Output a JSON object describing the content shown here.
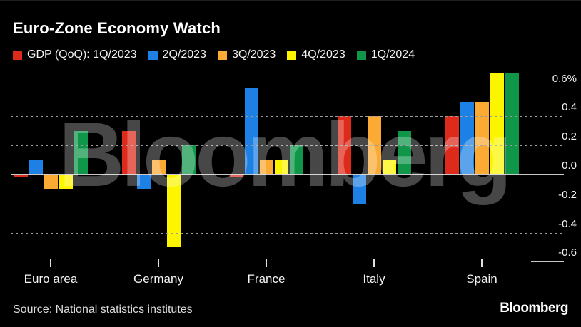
{
  "title": "Euro-Zone Economy Watch",
  "legend": {
    "items": [
      {
        "label": "GDP (QoQ): 1Q/2023",
        "color": "#dd2a1b"
      },
      {
        "label": "2Q/2023",
        "color": "#1d80e4"
      },
      {
        "label": "3Q/2023",
        "color": "#fbaa34"
      },
      {
        "label": "4Q/2023",
        "color": "#fdf500"
      },
      {
        "label": "1Q/2024",
        "color": "#0f9649"
      }
    ]
  },
  "chart_data": {
    "type": "bar",
    "title": "Euro-Zone Economy Watch",
    "categories": [
      "Euro area",
      "Germany",
      "France",
      "Italy",
      "Spain"
    ],
    "series": [
      {
        "name": "1Q/2023",
        "color": "#dd2a1b",
        "values": [
          0.0,
          0.3,
          0.0,
          0.4,
          0.4
        ]
      },
      {
        "name": "2Q/2023",
        "color": "#1d80e4",
        "values": [
          0.1,
          -0.1,
          0.6,
          -0.2,
          0.5
        ]
      },
      {
        "name": "3Q/2023",
        "color": "#fbaa34",
        "values": [
          -0.1,
          0.1,
          0.1,
          0.4,
          0.5
        ]
      },
      {
        "name": "4Q/2023",
        "color": "#fdf500",
        "values": [
          -0.1,
          -0.5,
          0.1,
          0.1,
          0.7
        ]
      },
      {
        "name": "1Q/2024",
        "color": "#0f9649",
        "values": [
          0.3,
          0.2,
          0.2,
          0.3,
          0.7
        ]
      }
    ],
    "unit": "%",
    "ylim": [
      -0.65,
      0.72
    ],
    "grid": "horizontal-dotted",
    "legend_position": "top",
    "y_axis": {
      "ticks": [
        {
          "label": "0.6%",
          "value": 0.6,
          "line": "dotted"
        },
        {
          "label": "0.4",
          "value": 0.4,
          "line": "dotted"
        },
        {
          "label": "0.2",
          "value": 0.2,
          "line": "dotted"
        },
        {
          "label": "0.0",
          "value": 0.0,
          "line": "solid"
        },
        {
          "label": "-0.2",
          "value": -0.2,
          "line": "dotted"
        },
        {
          "label": "-0.4",
          "value": -0.4,
          "line": "dotted"
        },
        {
          "label": "-0.6",
          "value": -0.6,
          "line": "stub"
        }
      ]
    }
  },
  "watermark": "Bloomberg",
  "footer": {
    "source": "Source: National statistics institutes",
    "logo": "Bloomberg"
  }
}
